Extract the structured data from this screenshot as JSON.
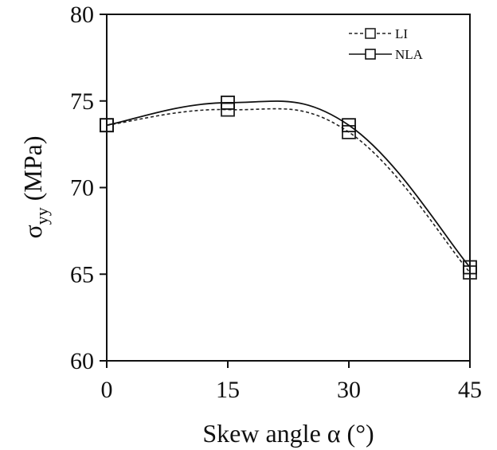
{
  "chart_data": {
    "type": "line",
    "title": "",
    "xlabel": "Skew angle α (°)",
    "ylabel_main": "σ",
    "ylabel_sub": "yy",
    "ylabel_unit": " (MPa)",
    "x": [
      0,
      15,
      30,
      45
    ],
    "xticks": [
      "0",
      "15",
      "30",
      "45"
    ],
    "yticks": [
      "60",
      "65",
      "70",
      "75",
      "80"
    ],
    "xlim": [
      0,
      45
    ],
    "ylim": [
      60,
      80
    ],
    "grid": false,
    "legend_position": "top-right",
    "series": [
      {
        "name": "LI",
        "values": [
          73.6,
          74.5,
          73.2,
          65.1
        ],
        "line_style": "dashed",
        "marker": "square",
        "color": "#222222"
      },
      {
        "name": "NLA",
        "values": [
          73.6,
          74.9,
          73.6,
          65.4
        ],
        "line_style": "solid",
        "marker": "square",
        "color": "#111111"
      }
    ]
  }
}
